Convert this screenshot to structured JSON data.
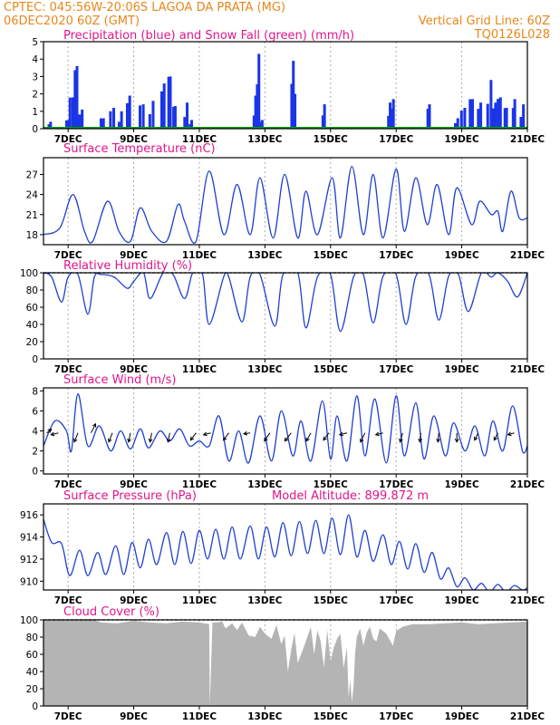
{
  "header": {
    "line1_left": "CPTEC:   045:56W-20:06S   LAGOA DA PRATA (MG)",
    "line2_left": "06DEC2020 60Z (GMT)",
    "line2_right": "Vertical Grid Line: 60Z",
    "line3_right": "TQ0126L028"
  },
  "x_axis": {
    "ticks": [
      "7DEC",
      "9DEC",
      "11DEC",
      "13DEC",
      "15DEC",
      "17DEC",
      "19DEC",
      "21DEC"
    ],
    "tick_days": [
      7,
      9,
      11,
      13,
      15,
      17,
      19,
      21
    ],
    "range_days": [
      6.25,
      21.0
    ]
  },
  "colors": {
    "line": "#2040d0",
    "precip": "#1a35e6",
    "snow": "#00a000",
    "cloud": "#b4b4b4",
    "grid": "#aaaaaa",
    "title": "#e0168a",
    "header": "#e8861a"
  },
  "chart_data": [
    {
      "id": "precip",
      "type": "bar",
      "title": "Precipitation (blue) and Snow Fall (green) (mm/h)",
      "ylim": [
        0,
        5
      ],
      "yticks": [
        0,
        1,
        2,
        3,
        4,
        5
      ],
      "events": [
        {
          "day": 6.4,
          "peak": 0.4,
          "width": 0.1
        },
        {
          "day": 6.95,
          "peak": 0.5,
          "width": 0.15
        },
        {
          "day": 7.1,
          "peak": 1.8,
          "width": 0.25
        },
        {
          "day": 7.2,
          "peak": 3.6,
          "width": 0.12
        },
        {
          "day": 7.35,
          "peak": 1.1,
          "width": 0.15
        },
        {
          "day": 8.0,
          "peak": 0.6,
          "width": 0.15
        },
        {
          "day": 8.3,
          "peak": 1.2,
          "width": 0.2
        },
        {
          "day": 8.55,
          "peak": 1.0,
          "width": 0.15
        },
        {
          "day": 8.8,
          "peak": 1.9,
          "width": 0.15
        },
        {
          "day": 9.2,
          "peak": 1.4,
          "width": 0.2
        },
        {
          "day": 9.5,
          "peak": 1.6,
          "width": 0.2
        },
        {
          "day": 9.85,
          "peak": 2.6,
          "width": 0.15
        },
        {
          "day": 10.05,
          "peak": 3.0,
          "width": 0.1
        },
        {
          "day": 10.2,
          "peak": 1.3,
          "width": 0.1
        },
        {
          "day": 10.55,
          "peak": 1.5,
          "width": 0.15
        },
        {
          "day": 10.7,
          "peak": 0.5,
          "width": 0.1
        },
        {
          "day": 12.65,
          "peak": 1.9,
          "width": 0.1
        },
        {
          "day": 12.75,
          "peak": 4.3,
          "width": 0.1
        },
        {
          "day": 12.85,
          "peak": 0.5,
          "width": 0.1
        },
        {
          "day": 13.8,
          "peak": 3.9,
          "width": 0.1
        },
        {
          "day": 13.85,
          "peak": 2.0,
          "width": 0.1
        },
        {
          "day": 14.75,
          "peak": 1.4,
          "width": 0.1
        },
        {
          "day": 16.75,
          "peak": 1.5,
          "width": 0.1
        },
        {
          "day": 16.85,
          "peak": 1.7,
          "width": 0.1
        },
        {
          "day": 17.95,
          "peak": 1.4,
          "width": 0.1
        },
        {
          "day": 18.8,
          "peak": 0.6,
          "width": 0.15
        },
        {
          "day": 19.0,
          "peak": 1.2,
          "width": 0.2
        },
        {
          "day": 19.25,
          "peak": 1.7,
          "width": 0.15
        },
        {
          "day": 19.5,
          "peak": 1.5,
          "width": 0.15
        },
        {
          "day": 19.8,
          "peak": 2.8,
          "width": 0.2
        },
        {
          "day": 19.95,
          "peak": 1.5,
          "width": 0.15
        },
        {
          "day": 20.1,
          "peak": 1.8,
          "width": 0.15
        },
        {
          "day": 20.3,
          "peak": 1.2,
          "width": 0.1
        },
        {
          "day": 20.55,
          "peak": 1.7,
          "width": 0.1
        },
        {
          "day": 20.8,
          "peak": 1.4,
          "width": 0.15
        }
      ]
    },
    {
      "id": "temp",
      "type": "line",
      "title": "Surface Temperature (nC)",
      "ylim": [
        16.5,
        29.5
      ],
      "yticks": [
        18,
        21,
        24,
        27
      ],
      "x": [
        6.25,
        6.75,
        7.15,
        7.5,
        7.75,
        8.2,
        8.55,
        8.9,
        9.2,
        9.55,
        10.0,
        10.35,
        10.55,
        10.9,
        11.3,
        11.75,
        12.15,
        12.55,
        12.85,
        13.25,
        13.6,
        14.0,
        14.25,
        14.6,
        15.05,
        15.3,
        15.65,
        16.0,
        16.3,
        16.6,
        17.0,
        17.25,
        17.6,
        17.95,
        18.25,
        18.6,
        18.85,
        19.3,
        19.55,
        19.9,
        20.1,
        20.25,
        20.5,
        20.75,
        21.0
      ],
      "y": [
        18,
        19,
        24,
        18.5,
        17,
        23,
        18.5,
        17,
        22,
        18.5,
        17,
        22.5,
        20,
        17,
        27.5,
        18,
        25.5,
        18,
        26.5,
        17.5,
        27,
        17.5,
        24.5,
        18,
        26.5,
        17.5,
        28.2,
        18,
        27,
        17.5,
        27.8,
        18.5,
        26.5,
        19.5,
        25.5,
        18,
        25,
        19.5,
        23,
        21,
        21.5,
        18.5,
        24.5,
        20.5,
        20.5
      ]
    },
    {
      "id": "rh",
      "type": "line",
      "title": "Relative Humidity (%)",
      "ylim": [
        0,
        100
      ],
      "yticks": [
        0,
        20,
        40,
        60,
        80,
        100
      ],
      "x": [
        6.25,
        6.5,
        6.8,
        7.0,
        7.3,
        7.6,
        7.8,
        8.0,
        8.4,
        8.8,
        9.0,
        9.3,
        9.5,
        9.9,
        10.2,
        10.55,
        10.8,
        11.1,
        11.3,
        11.75,
        11.9,
        12.3,
        12.55,
        12.85,
        13.3,
        13.55,
        14.0,
        14.25,
        14.6,
        15.0,
        15.3,
        15.7,
        16.0,
        16.3,
        16.6,
        17.0,
        17.3,
        17.6,
        18.0,
        18.3,
        18.6,
        18.9,
        19.2,
        19.6,
        19.9,
        20.1,
        20.4,
        20.7,
        21.0
      ],
      "y": [
        100,
        95,
        66,
        95,
        98,
        52,
        95,
        98,
        95,
        82,
        90,
        100,
        70,
        100,
        98,
        70,
        100,
        98,
        40,
        96,
        95,
        43,
        95,
        98,
        38,
        98,
        100,
        36,
        95,
        98,
        32,
        95,
        98,
        42,
        96,
        98,
        40,
        96,
        98,
        45,
        96,
        98,
        55,
        100,
        95,
        100,
        90,
        72,
        100
      ]
    },
    {
      "id": "wind",
      "type": "line",
      "title": "Surface Wind (m/s)",
      "ylim": [
        -0.3,
        8.3
      ],
      "yticks": [
        0,
        2,
        4,
        6,
        8
      ],
      "x": [
        6.25,
        6.6,
        6.95,
        7.1,
        7.3,
        7.6,
        7.95,
        8.3,
        8.6,
        8.9,
        9.2,
        9.45,
        9.8,
        10.1,
        10.4,
        10.7,
        11.0,
        11.3,
        11.6,
        11.9,
        12.2,
        12.5,
        12.85,
        13.2,
        13.5,
        13.85,
        14.1,
        14.4,
        14.75,
        15.0,
        15.2,
        15.5,
        15.8,
        16.05,
        16.35,
        16.7,
        17.0,
        17.25,
        17.6,
        17.85,
        18.15,
        18.5,
        18.75,
        19.1,
        19.4,
        19.7,
        19.95,
        20.25,
        20.55,
        20.85,
        21.0
      ],
      "y": [
        2.5,
        5,
        4,
        2,
        7.7,
        2.5,
        4.5,
        2,
        4,
        2.2,
        4.2,
        2.3,
        4,
        3,
        4.2,
        2.5,
        3,
        2.5,
        5.5,
        1,
        4,
        0.8,
        5.5,
        1,
        6,
        1.5,
        5,
        1,
        7,
        1.2,
        5.5,
        1,
        7.5,
        1.5,
        7.2,
        0.8,
        7.5,
        1.5,
        6.8,
        1.2,
        5.5,
        1.5,
        4.8,
        2,
        4.5,
        1.5,
        5,
        2,
        6.5,
        2,
        2.5
      ],
      "arrows": [
        {
          "day": 6.35,
          "dx": 5,
          "dy": -4
        },
        {
          "day": 6.7,
          "dx": -8,
          "dy": 2
        },
        {
          "day": 7.3,
          "dx": -4,
          "dy": 10
        },
        {
          "day": 7.7,
          "dx": 5,
          "dy": -10
        },
        {
          "day": 8.35,
          "dx": -4,
          "dy": 10
        },
        {
          "day": 8.9,
          "dx": -2,
          "dy": 10
        },
        {
          "day": 9.55,
          "dx": -2,
          "dy": 10
        },
        {
          "day": 10.1,
          "dx": -2,
          "dy": 10
        },
        {
          "day": 10.9,
          "dx": -6,
          "dy": 8
        },
        {
          "day": 11.35,
          "dx": -8,
          "dy": 2
        },
        {
          "day": 11.9,
          "dx": -6,
          "dy": 8
        },
        {
          "day": 12.55,
          "dx": -7,
          "dy": 1
        },
        {
          "day": 13.15,
          "dx": -6,
          "dy": 9
        },
        {
          "day": 13.8,
          "dx": -7,
          "dy": 9
        },
        {
          "day": 14.4,
          "dx": -5,
          "dy": 9
        },
        {
          "day": 14.95,
          "dx": -6,
          "dy": 8
        },
        {
          "day": 15.5,
          "dx": -8,
          "dy": 2
        },
        {
          "day": 16.05,
          "dx": -5,
          "dy": 10
        },
        {
          "day": 16.6,
          "dx": -8,
          "dy": 2
        },
        {
          "day": 17.2,
          "dx": -3,
          "dy": 10
        },
        {
          "day": 17.75,
          "dx": -1,
          "dy": 10
        },
        {
          "day": 18.3,
          "dx": -1,
          "dy": 10
        },
        {
          "day": 18.85,
          "dx": 0,
          "dy": 10
        },
        {
          "day": 19.5,
          "dx": -4,
          "dy": 8
        },
        {
          "day": 20.1,
          "dx": -4,
          "dy": 8
        },
        {
          "day": 20.6,
          "dx": -7,
          "dy": 2
        }
      ]
    },
    {
      "id": "press",
      "type": "line",
      "title": "Surface Pressure (hPa)",
      "annotation": "Model Altitude: 899.872 m",
      "ylim": [
        909.2,
        917
      ],
      "yticks": [
        910,
        912,
        914,
        916
      ],
      "x": [
        6.25,
        6.5,
        6.8,
        7.05,
        7.35,
        7.6,
        7.9,
        8.15,
        8.45,
        8.7,
        8.95,
        9.2,
        9.45,
        9.7,
        10.0,
        10.25,
        10.5,
        10.75,
        11.0,
        11.25,
        11.5,
        11.75,
        12.0,
        12.25,
        12.55,
        12.8,
        13.05,
        13.3,
        13.55,
        13.8,
        14.05,
        14.3,
        14.55,
        14.8,
        15.05,
        15.3,
        15.55,
        15.8,
        16.05,
        16.3,
        16.6,
        16.85,
        17.1,
        17.35,
        17.6,
        17.85,
        18.1,
        18.35,
        18.6,
        18.85,
        19.1,
        19.35,
        19.6,
        19.85,
        20.1,
        20.35,
        20.6,
        20.85,
        21.0
      ],
      "y": [
        915.6,
        913.5,
        913.4,
        910.5,
        912.8,
        910.5,
        912.6,
        910.6,
        913.2,
        910.6,
        913.5,
        911.2,
        913.8,
        911.5,
        914.4,
        911.5,
        914.5,
        911.6,
        914.6,
        912.0,
        914.7,
        912.0,
        914.9,
        912.0,
        915.0,
        912.0,
        914.9,
        912.2,
        915.3,
        912.3,
        915.4,
        912.5,
        915.5,
        912.5,
        915.7,
        912.4,
        916.0,
        912.2,
        914.6,
        911.8,
        914.2,
        911.5,
        913.6,
        911.1,
        913.4,
        910.8,
        912.6,
        910.2,
        911.2,
        909.5,
        910.3,
        909.2,
        909.8,
        909.0,
        909.7,
        909.0,
        909.6,
        909.2,
        909.4
      ]
    },
    {
      "id": "cloud",
      "type": "area",
      "title": "Cloud Cover (%)",
      "ylim": [
        0,
        100
      ],
      "yticks": [
        0,
        20,
        40,
        60,
        80,
        100
      ],
      "x": [
        6.25,
        7.8,
        8.0,
        8.5,
        9.0,
        9.5,
        10.0,
        10.5,
        11.0,
        11.3,
        11.32,
        11.4,
        11.5,
        11.7,
        11.8,
        12.0,
        12.15,
        12.3,
        12.5,
        12.7,
        12.85,
        13.0,
        13.2,
        13.35,
        13.5,
        13.6,
        13.7,
        13.8,
        13.9,
        14.0,
        14.2,
        14.4,
        14.5,
        14.6,
        14.7,
        14.8,
        14.9,
        15.0,
        15.1,
        15.2,
        15.3,
        15.4,
        15.5,
        15.55,
        15.6,
        15.65,
        15.7,
        15.75,
        15.8,
        15.9,
        16.0,
        16.1,
        16.2,
        16.3,
        16.4,
        16.5,
        16.7,
        16.9,
        17.0,
        17.2,
        17.5,
        18.0,
        18.5,
        19.0,
        19.5,
        20.0,
        20.5,
        21.0
      ],
      "y": [
        100,
        100,
        97,
        96,
        99,
        97,
        96,
        98,
        97,
        95,
        0,
        97,
        97,
        98,
        90,
        96,
        88,
        97,
        82,
        80,
        92,
        84,
        78,
        94,
        72,
        82,
        40,
        65,
        85,
        50,
        70,
        92,
        60,
        88,
        75,
        45,
        88,
        52,
        68,
        78,
        84,
        44,
        68,
        10,
        30,
        5,
        22,
        62,
        80,
        90,
        70,
        85,
        92,
        78,
        75,
        90,
        84,
        70,
        87,
        92,
        95,
        95,
        96,
        97,
        95,
        96,
        97,
        98
      ]
    }
  ]
}
